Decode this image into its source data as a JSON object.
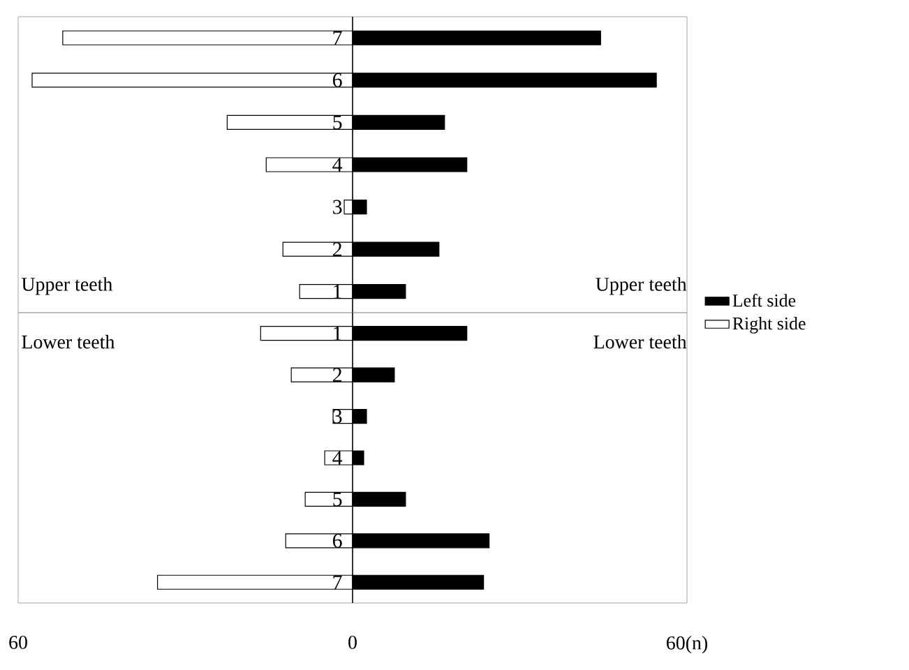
{
  "chart_data": [
    {
      "type": "bar",
      "orientation": "horizontal",
      "categories": [
        "7",
        "6",
        "5",
        "4",
        "3",
        "2",
        "1"
      ],
      "series": [
        {
          "color": "#000000",
          "values": [
            44.5,
            54.5,
            16.5,
            20.5,
            2.5,
            15.5,
            9.5
          ]
        },
        {
          "color": "#ffffff",
          "values": [
            -52,
            -57.5,
            -22.5,
            -15.5,
            -1.5,
            -12.5,
            -9.5
          ]
        }
      ],
      "xlim": [
        -60,
        60
      ],
      "tick_labels": "y",
      "grid": false,
      "legend": false,
      "stacked": true,
      "annotations": [
        "Upper teeth",
        "Upper teeth"
      ]
    },
    {
      "type": "bar",
      "orientation": "horizontal",
      "categories": [
        "1",
        "2",
        "3",
        "4",
        "5",
        "6",
        "7"
      ],
      "series": [
        {
          "name": "Left side",
          "color": "#000000",
          "values": [
            20.5,
            7.5,
            2.5,
            2,
            9.5,
            24.5,
            23.5
          ]
        },
        {
          "name": "Right side",
          "color": "#ffffff",
          "values": [
            -16.5,
            -11,
            -3.5,
            -5,
            -8.5,
            -12,
            -35
          ]
        }
      ],
      "xlim": [
        -60,
        60
      ],
      "xticks": [
        {
          "value": -60,
          "label": "60"
        },
        0,
        {
          "value": 60,
          "label": "60(n)"
        }
      ],
      "grid": false,
      "legend": "right",
      "stacked": true,
      "annotations": [
        "Lower teeth",
        "Lower teeth"
      ]
    }
  ]
}
